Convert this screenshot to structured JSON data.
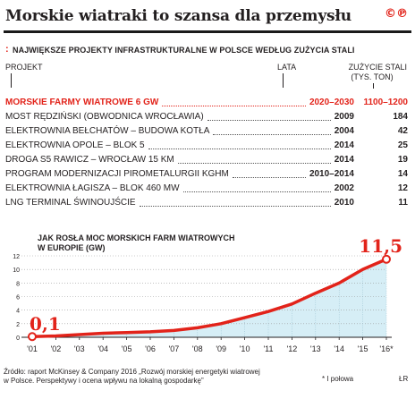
{
  "header": {
    "title": "Morskie wiatraki to szansa dla przemysłu",
    "logo": "©℗",
    "subtitle": "NAJWIĘKSZE PROJEKTY INFRASTRUKTURALNE W POLSCE WEDŁUG ZUŻYCIA STALI"
  },
  "table": {
    "col_project": "PROJEKT",
    "col_years": "LATA",
    "col_usage_line1": "ZUŻYCIE STALI",
    "col_usage_line2": "(TYS. TON)",
    "rows": [
      {
        "name": "MORSKIE FARMY WIATROWE 6 GW",
        "years": "2020–2030",
        "usage": "1100–1200",
        "highlight": true
      },
      {
        "name": "MOST RĘDZIŃSKI (OBWODNICA WROCŁAWIA)",
        "years": "2009",
        "usage": "184"
      },
      {
        "name": "ELEKTROWNIA BEŁCHATÓW – BUDOWA KOTŁA",
        "years": "2004",
        "usage": "42"
      },
      {
        "name": "ELEKTROWNIA OPOLE – BLOK 5",
        "years": "2014",
        "usage": "25"
      },
      {
        "name": "DROGA S5 RAWICZ – WROCŁAW 15 KM",
        "years": "2014",
        "usage": "19"
      },
      {
        "name": "PROGRAM MODERNIZACJI PIROMETALURGII KGHM",
        "years": "2010–2014",
        "usage": "14"
      },
      {
        "name": "ELEKTROWNIA ŁAGISZA – BLOK 460 MW",
        "years": "2002",
        "usage": "12"
      },
      {
        "name": "LNG TERMINAL ŚWINOUJŚCIE",
        "years": "2010",
        "usage": "11"
      }
    ]
  },
  "chart_data": {
    "type": "area",
    "title_line1": "JAK ROSŁA MOC MORSKICH FARM WIATROWYCH",
    "title_line2": "W EUROPIE (GW)",
    "categories": [
      "'01",
      "'02",
      "'03",
      "'04",
      "'05",
      "'06",
      "'07",
      "'08",
      "'09",
      "'10",
      "'11",
      "'12",
      "'13",
      "'14",
      "'15",
      "'16*"
    ],
    "values": [
      0.1,
      0.2,
      0.4,
      0.6,
      0.7,
      0.8,
      1.0,
      1.4,
      2.0,
      2.9,
      3.8,
      4.9,
      6.5,
      8.0,
      10.0,
      11.5
    ],
    "ylim": [
      0,
      12
    ],
    "yticks": [
      0,
      2,
      4,
      6,
      8,
      10,
      12
    ],
    "start_label": "0,1",
    "end_label": "11,5",
    "grid": true,
    "line_color": "#e2231a",
    "fill_color": "#d6eef6"
  },
  "footer": {
    "source_line1": "Źródło: raport McKinsey & Company 2016 „Rozwój morskiej energetyki wiatrowej",
    "source_line2": "w Polsce. Perspektywy i ocena wpływu na lokalną gospodarkę”",
    "footnote": "* I połowa",
    "author": "ŁR"
  }
}
